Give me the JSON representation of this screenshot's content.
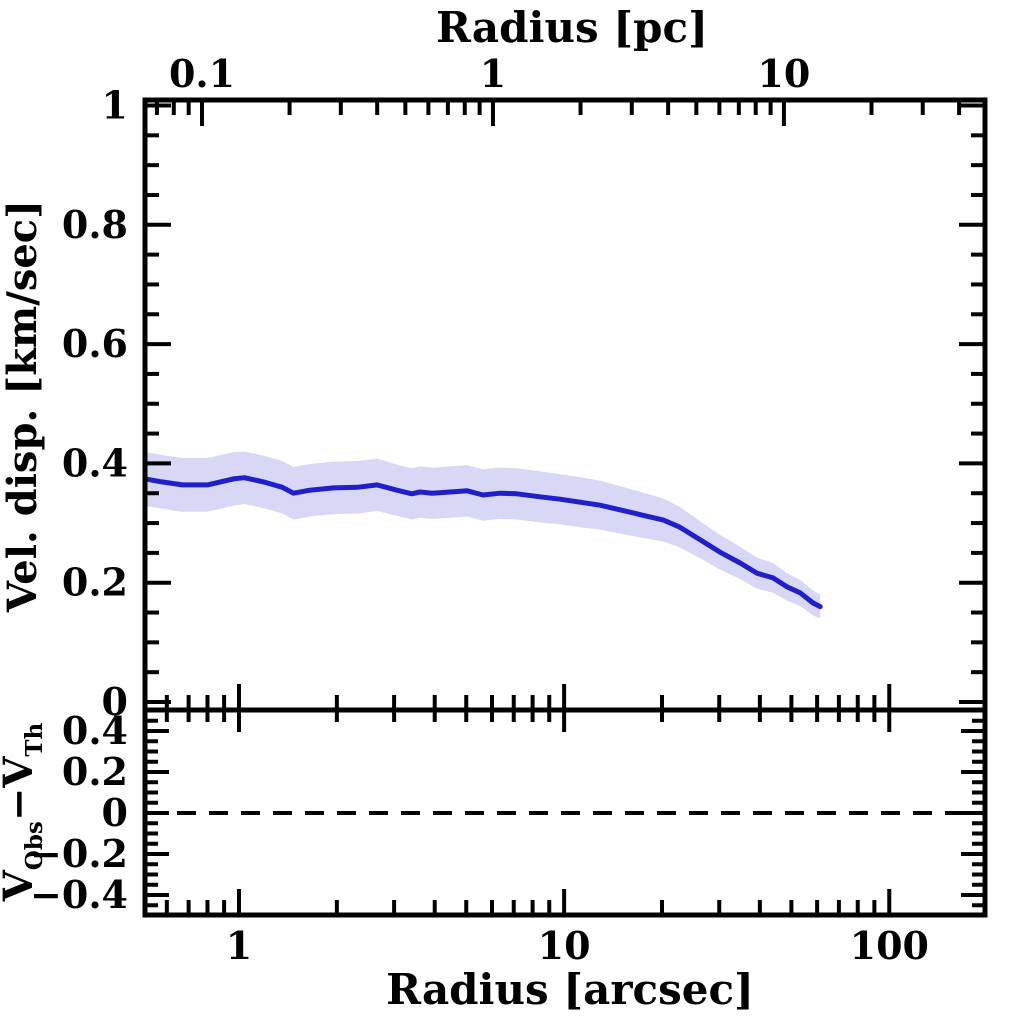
{
  "figure": {
    "background": "#ffffff",
    "axes_color": "#000000"
  },
  "chart_data": {
    "type": "line",
    "x_scale": "log",
    "grid": "off",
    "legend": "none",
    "top_axis": {
      "label": "Radius [pc]",
      "tick_labels": [
        "0.1",
        "1",
        "10"
      ],
      "tick_values": [
        0.1,
        1,
        10
      ],
      "range": [
        0.0637,
        49.1
      ]
    },
    "bottom_axis": {
      "label": "Radius [arcsec]",
      "tick_labels": [
        "1",
        "10",
        "100"
      ],
      "tick_values": [
        1,
        10,
        100
      ],
      "range": [
        0.514,
        197
      ]
    },
    "top_panel": {
      "ylabel": "Vel. disp. [km/sec]",
      "ylim": [
        0,
        1
      ],
      "ytick_labels": [
        "0",
        "0.2",
        "0.4",
        "0.6",
        "0.8",
        "1"
      ],
      "ytick_values": [
        0,
        0.2,
        0.4,
        0.6,
        0.8,
        1
      ],
      "y_minor_step": 0.05,
      "series": [
        {
          "name": "velocity dispersion profile with uncertainty band",
          "line_color": "#1f1fcc",
          "band_color": "#d8d8f6",
          "x_arcsec": [
            0.514,
            0.58,
            0.67,
            0.8,
            0.96,
            1.04,
            1.19,
            1.36,
            1.47,
            1.65,
            1.95,
            2.31,
            2.66,
            3.06,
            3.4,
            3.6,
            3.92,
            4.46,
            5.03,
            5.63,
            6.35,
            7.16,
            8.43,
            9.72,
            11.2,
            12.9,
            14.9,
            17.5,
            20.2,
            22.7,
            26.2,
            30.2,
            34.8,
            39.2,
            43.9,
            48.5,
            53.2,
            58.3,
            61.3
          ],
          "sigma_kms": [
            0.374,
            0.369,
            0.364,
            0.364,
            0.374,
            0.376,
            0.369,
            0.36,
            0.35,
            0.355,
            0.359,
            0.36,
            0.364,
            0.355,
            0.349,
            0.352,
            0.35,
            0.352,
            0.354,
            0.347,
            0.35,
            0.349,
            0.344,
            0.34,
            0.335,
            0.33,
            0.322,
            0.313,
            0.305,
            0.293,
            0.272,
            0.251,
            0.233,
            0.216,
            0.208,
            0.193,
            0.183,
            0.166,
            0.16
          ],
          "band_half_width": [
            0.045,
            0.045,
            0.045,
            0.045,
            0.045,
            0.044,
            0.044,
            0.044,
            0.044,
            0.044,
            0.044,
            0.044,
            0.044,
            0.043,
            0.043,
            0.043,
            0.043,
            0.043,
            0.043,
            0.043,
            0.043,
            0.043,
            0.043,
            0.042,
            0.042,
            0.041,
            0.04,
            0.038,
            0.036,
            0.034,
            0.031,
            0.029,
            0.027,
            0.026,
            0.025,
            0.023,
            0.022,
            0.021,
            0.02
          ]
        }
      ]
    },
    "bottom_panel": {
      "ylabel_parts": {
        "base1": "V",
        "sub1": "Obs",
        "base2": "−V",
        "sub2": "Th"
      },
      "ylim": [
        -0.5,
        0.5
      ],
      "ytick_labels": [
        "−0.4",
        "−0.2",
        "0",
        "0.2",
        "0.4"
      ],
      "ytick_values": [
        -0.4,
        -0.2,
        0,
        0.2,
        0.4
      ],
      "y_minor_step": 0.05,
      "zero_line": {
        "value": 0,
        "style": "dashed",
        "color": "#000000"
      },
      "points": []
    }
  }
}
